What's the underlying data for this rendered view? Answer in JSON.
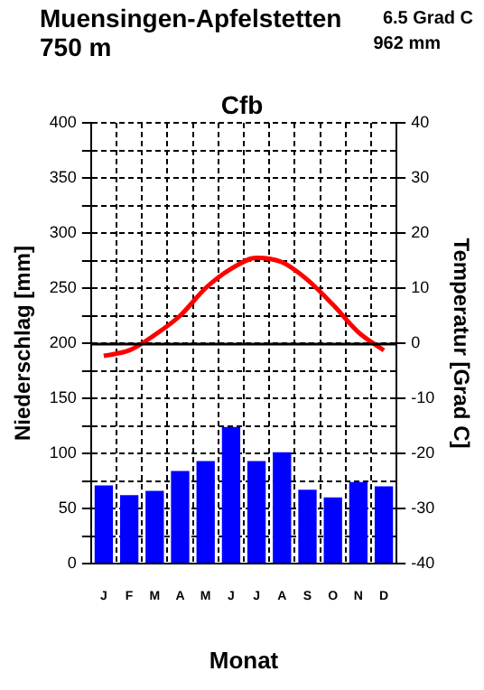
{
  "chart_data": {
    "type": "bar",
    "title": "Muensingen-Apfelstetten",
    "subtitle": "750 m",
    "annotations": [
      "6.5 Grad C",
      "962 mm",
      "Cfb"
    ],
    "xlabel": "Monat",
    "ylabel": "Niederschlag [mm]",
    "y2label": "Temperatur [Grad C]",
    "categories": [
      "J",
      "F",
      "M",
      "A",
      "M",
      "J",
      "J",
      "A",
      "S",
      "O",
      "N",
      "D"
    ],
    "series": [
      {
        "color": "#0000ff",
        "values": [
          71,
          62,
          66,
          84,
          93,
          124,
          93,
          101,
          67,
          60,
          74,
          70
        ]
      },
      {
        "type": "line",
        "axis": "y2",
        "color": "#ff0000",
        "values": [
          -2.3,
          -1.3,
          1.5,
          5,
          10,
          13.5,
          15.5,
          14.7,
          11.5,
          7,
          2,
          -1.3
        ]
      }
    ],
    "ylim": [
      0,
      400
    ],
    "yticks": [
      0,
      {
        "value": 25,
        "label": null
      },
      50,
      {
        "value": 75,
        "label": null
      },
      100,
      {
        "value": 125,
        "label": null
      },
      150,
      {
        "value": 175,
        "label": null
      },
      200,
      {
        "value": 225,
        "label": null
      },
      250,
      {
        "value": 275,
        "label": null
      },
      300,
      {
        "value": 325,
        "label": null
      },
      350,
      {
        "value": 375,
        "label": null
      },
      400
    ],
    "y2lim": [
      -40,
      40
    ],
    "y2ticks": [
      -40,
      -30,
      -20,
      -10,
      0,
      10,
      20,
      30,
      40
    ],
    "ref_lines": [
      {
        "axis": "y",
        "value": 200,
        "color": "#000000",
        "line_style": "solid"
      }
    ],
    "grid": true,
    "marker": "none",
    "legend": false
  }
}
